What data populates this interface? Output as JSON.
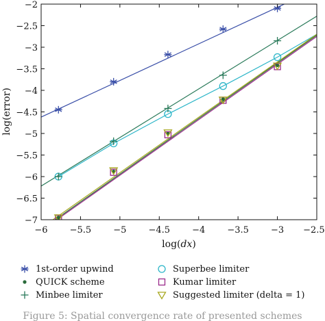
{
  "chart_data": {
    "type": "line",
    "title": "",
    "xlabel_prefix": "log(",
    "xlabel_var": "dx",
    "xlabel_suffix": ")",
    "ylabel": "log(error)",
    "xlim": [
      -6,
      -2.5
    ],
    "ylim": [
      -7,
      -2
    ],
    "xticks": [
      -6,
      -5.5,
      -5,
      -4.5,
      -4,
      -3.5,
      -3,
      -2.5
    ],
    "yticks": [
      -2,
      -2.5,
      -3,
      -3.5,
      -4,
      -4.5,
      -5,
      -5.5,
      -6,
      -6.5,
      -7
    ],
    "xtick_labels": [
      "−6",
      "−5.5",
      "−5",
      "−4.5",
      "−4",
      "−3.5",
      "−3",
      "−2.50"
    ],
    "ytick_labels": [
      "−2",
      "−2.5",
      "−3",
      "−3.5",
      "−4",
      "−4.5",
      "−5",
      "−5.5",
      "−6",
      "−6.5",
      "−7"
    ],
    "grid": false,
    "legend_position": "below",
    "series": [
      {
        "name": "1st-order upwind",
        "marker": "asterisk",
        "color": "#3a4fa8",
        "x": [
          -5.78,
          -5.08,
          -4.39,
          -3.69,
          -3.0
        ],
        "y": [
          -4.45,
          -3.8,
          -3.17,
          -2.58,
          -2.1
        ],
        "fit": [
          [
            -6,
            -4.62
          ],
          [
            -2.5,
            -1.65
          ]
        ]
      },
      {
        "name": "QUICK scheme",
        "marker": "dot",
        "color": "#2a6a3a",
        "x": [
          -5.78,
          -5.08,
          -4.39,
          -3.69,
          -3.0
        ],
        "y": [
          -6.95,
          -5.88,
          -5.0,
          -4.2,
          -3.42
        ],
        "fit": [
          [
            -5.82,
            -7.0
          ],
          [
            -2.5,
            -2.72
          ]
        ]
      },
      {
        "name": "Superbee limiter",
        "marker": "circle",
        "color": "#2bb5c8",
        "x": [
          -5.78,
          -5.08,
          -4.39,
          -3.69,
          -3.0
        ],
        "y": [
          -6.0,
          -5.23,
          -4.55,
          -3.9,
          -3.23
        ],
        "fit": [
          [
            -5.78,
            -6.0
          ],
          [
            -5.08,
            -5.23
          ],
          [
            -4.39,
            -4.55
          ],
          [
            -3.69,
            -3.9
          ],
          [
            -3.0,
            -3.23
          ],
          [
            -2.5,
            -2.7
          ]
        ]
      },
      {
        "name": "Kumar limiter",
        "marker": "square",
        "color": "#9a2a8a",
        "x": [
          -5.78,
          -5.08,
          -4.39,
          -3.69,
          -3.0
        ],
        "y": [
          -6.97,
          -5.9,
          -5.03,
          -4.23,
          -3.45
        ],
        "fit": [
          [
            -5.8,
            -7.0
          ],
          [
            -2.5,
            -2.75
          ]
        ]
      },
      {
        "name": "Minbee limiter",
        "marker": "plus",
        "color": "#2a7a5a",
        "x": [
          -5.78,
          -5.08,
          -4.39,
          -3.69,
          -3.0
        ],
        "y": [
          -6.0,
          -5.18,
          -4.42,
          -3.65,
          -2.85
        ],
        "fit": [
          [
            -6,
            -6.22
          ],
          [
            -2.5,
            -2.28
          ]
        ]
      },
      {
        "name": "Suggested limiter (delta = 1)",
        "marker": "triangle",
        "color": "#a8a820",
        "x": [
          -5.78,
          -5.08,
          -4.39,
          -3.69,
          -3.0
        ],
        "y": [
          -6.95,
          -5.86,
          -4.98,
          -4.22,
          -3.43
        ],
        "fit": [
          [
            -5.85,
            -7.0
          ],
          [
            -2.5,
            -2.7
          ]
        ]
      }
    ],
    "legend_order": [
      [
        "1st-order upwind",
        "Superbee limiter"
      ],
      [
        "QUICK scheme",
        "Kumar limiter"
      ],
      [
        "Minbee limiter",
        "Suggested limiter (delta = 1)"
      ]
    ]
  },
  "caption": "Figure 5: Spatial convergence rate of presented schemes"
}
